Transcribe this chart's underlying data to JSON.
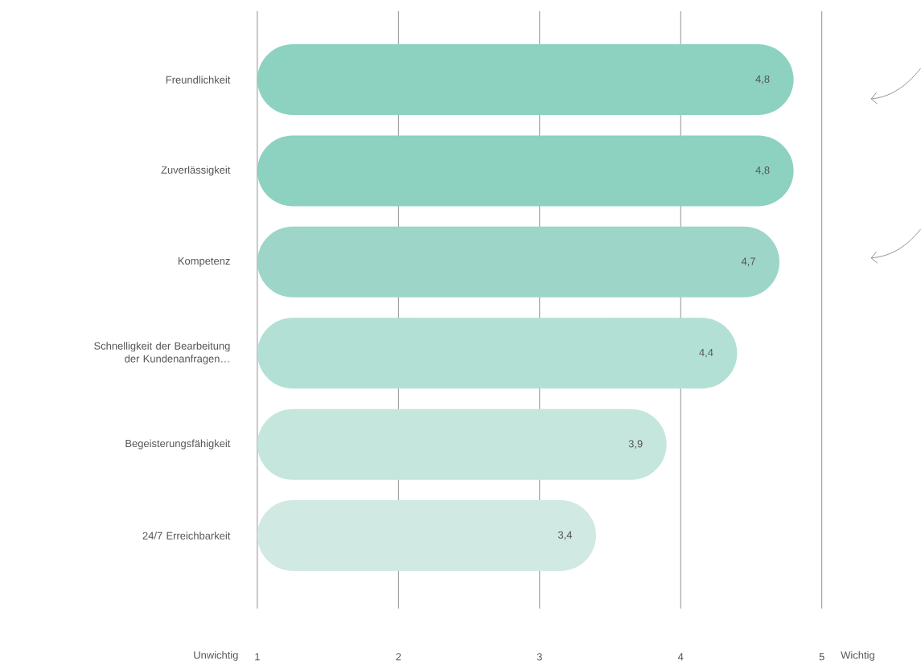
{
  "chart_data": {
    "type": "bar",
    "orientation": "horizontal",
    "categories": [
      "Freundlichkeit",
      "Zuverlässigkeit",
      "Kompetenz",
      "Schnelligkeit der Bearbeitung der Kundenanfragen…",
      "Begeisterungsfähigkeit",
      "24/7 Erreichbarkeit"
    ],
    "values": [
      4.8,
      4.8,
      4.7,
      4.4,
      3.9,
      3.4
    ],
    "colors": [
      "#8dd1c1",
      "#8dd1c1",
      "#9dd6c8",
      "#b3e0d5",
      "#c4e6dd",
      "#d0e9e2"
    ],
    "value_labels": [
      "4,8",
      "4,8",
      "4,7",
      "4,4",
      "3,9",
      "3,4"
    ],
    "xlim": [
      1,
      5
    ],
    "xticks": [
      1,
      2,
      3,
      4,
      5
    ],
    "grid": "x",
    "annotations": [
      "Unwichtig",
      "Wichtig"
    ]
  }
}
